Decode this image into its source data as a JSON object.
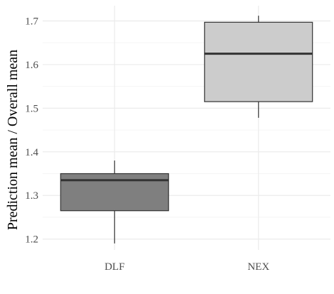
{
  "chart_data": {
    "type": "boxplot",
    "title": "",
    "xlabel": "",
    "ylabel": "Prediction mean / Overall mean",
    "categories": [
      "DLF",
      "NEX"
    ],
    "boxes": [
      {
        "category": "DLF",
        "whisker_low": 1.19,
        "q1": 1.265,
        "median": 1.335,
        "q3": 1.35,
        "whisker_high": 1.38,
        "fill": "#7f7f7f"
      },
      {
        "category": "NEX",
        "whisker_low": 1.478,
        "q1": 1.515,
        "median": 1.625,
        "q3": 1.697,
        "whisker_high": 1.712,
        "fill": "#cccccc"
      }
    ],
    "yticks": [
      "1.2",
      "1.3",
      "1.4",
      "1.5",
      "1.6",
      "1.7"
    ],
    "ylim": [
      1.175,
      1.735
    ],
    "grid": true,
    "legend": "none",
    "colors": {
      "grid_major": "#ebebeb",
      "grid_minor": "#f5f5f5",
      "box_stroke": "#333333"
    }
  }
}
